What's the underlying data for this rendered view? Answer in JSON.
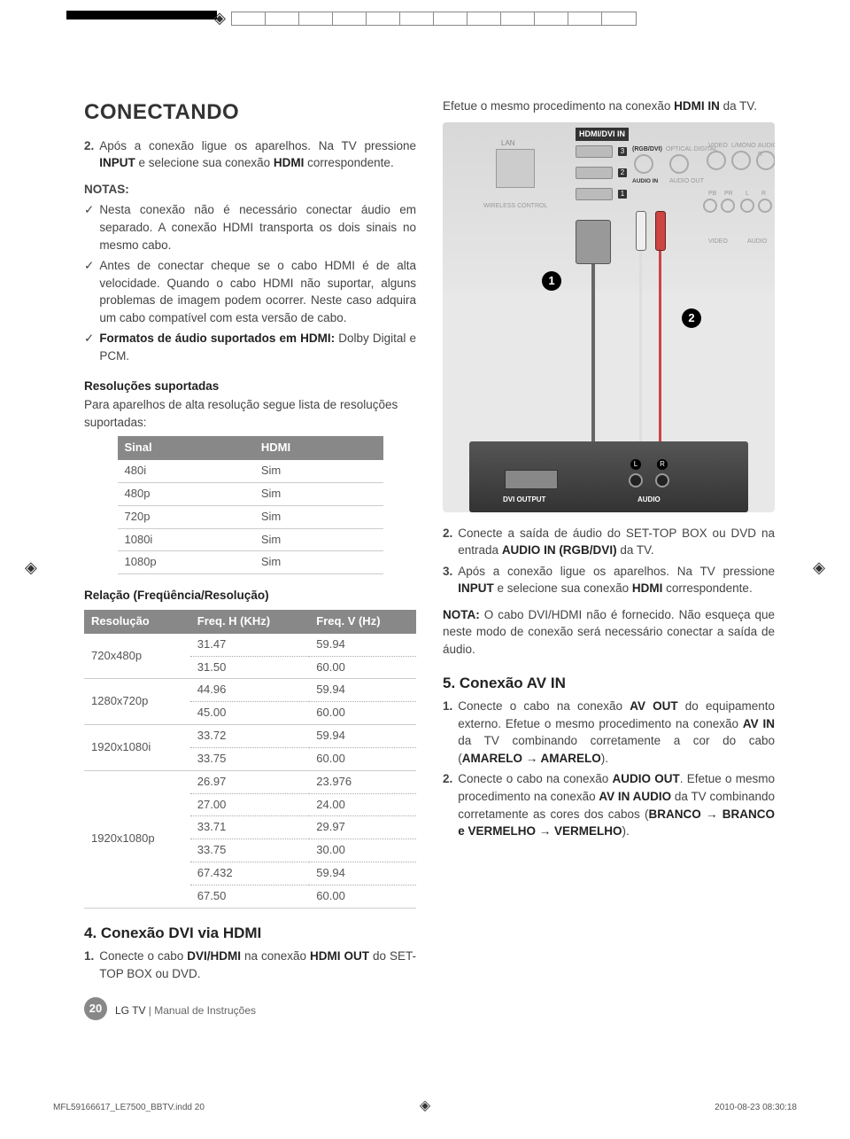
{
  "colors": {
    "text": "#444444",
    "heading": "#222222",
    "table_header_bg": "#888888",
    "table_header_fg": "#ffffff",
    "page_bg": "#ffffff",
    "footer_gray": "#888888",
    "swatches": [
      "#ffffff",
      "#ffffff",
      "#ffffff",
      "#ffffff",
      "#ffffff",
      "#ffffff",
      "#ffffff",
      "#ffffff",
      "#ffffff",
      "#ffffff",
      "#ffffff",
      "#ffffff"
    ]
  },
  "fonts": {
    "body_size_pt": 10,
    "h1_size_pt": 18,
    "h2_size_pt": 13
  },
  "page_title": "CONECTANDO",
  "left": {
    "step2_prefix": "2.",
    "step2_text": "Após a conexão ligue os aparelhos. Na TV pressione ",
    "step2_b1": "INPUT",
    "step2_mid": " e selecione sua conexão ",
    "step2_b2": "HDMI",
    "step2_end": " correspondente.",
    "notas_label": "NOTAS:",
    "check": "✓",
    "nota1": "Nesta conexão não é necessário conectar áudio em separado. A conexão HDMI transporta os dois sinais no mesmo cabo.",
    "nota2": "Antes de conectar cheque se o cabo HDMI é de alta velocidade. Quando o cabo HDMI não suportar, alguns problemas de imagem podem ocorrer. Neste caso adquira um cabo compatível com esta versão de cabo.",
    "nota3_b": "Formatos de áudio suportados em HDMI:",
    "nota3_rest": " Dolby Digital e PCM.",
    "res_head": "Resoluções suportadas",
    "res_intro": "Para aparelhos de alta resolução segue lista de resoluções suportadas:",
    "table1": {
      "headers": [
        "Sinal",
        "HDMI"
      ],
      "rows": [
        [
          "480i",
          "Sim"
        ],
        [
          "480p",
          "Sim"
        ],
        [
          "720p",
          "Sim"
        ],
        [
          "1080i",
          "Sim"
        ],
        [
          "1080p",
          "Sim"
        ]
      ]
    },
    "rel_head": "Relação (Freqüência/Resolução)",
    "table2": {
      "headers": [
        "Resolução",
        "Freq. H (KHz)",
        "Freq. V (Hz)"
      ],
      "groups": [
        {
          "res": "720x480p",
          "rows": [
            [
              "31.47",
              "59.94"
            ],
            [
              "31.50",
              "60.00"
            ]
          ]
        },
        {
          "res": "1280x720p",
          "rows": [
            [
              "44.96",
              "59.94"
            ],
            [
              "45.00",
              "60.00"
            ]
          ]
        },
        {
          "res": "1920x1080i",
          "rows": [
            [
              "33.72",
              "59.94"
            ],
            [
              "33.75",
              "60.00"
            ]
          ]
        },
        {
          "res": "1920x1080p",
          "rows": [
            [
              "26.97",
              "23.976"
            ],
            [
              "27.00",
              "24.00"
            ],
            [
              "33.71",
              "29.97"
            ],
            [
              "33.75",
              "30.00"
            ],
            [
              "67.432",
              "59.94"
            ],
            [
              "67.50",
              "60.00"
            ]
          ]
        }
      ]
    },
    "sec4_title": "4. Conexão DVI via HDMI",
    "sec4_1_n": "1.",
    "sec4_1_a": "Conecte o cabo ",
    "sec4_1_b1": "DVI/HDMI",
    "sec4_1_c": " na conexão ",
    "sec4_1_b2": "HDMI OUT",
    "sec4_1_d": " do SET-TOP BOX ou DVD."
  },
  "right": {
    "intro_a": "Efetue o mesmo procedimento na conexão ",
    "intro_b": "HDMI IN",
    "intro_c": " da TV.",
    "diagram": {
      "hdmi_label": "HDMI/DVI IN",
      "lan": "LAN",
      "wireless": "WIRELESS CONTROL",
      "rgbdvi": "(RGB/DVI)",
      "optical": "OPTICAL DIGITAL",
      "audio_in": "AUDIO IN",
      "audio_out": "AUDIO OUT",
      "video": "VIDEO",
      "lmono": "L/MONO",
      "audio_r": "AUDIO R",
      "pb": "PB",
      "pr": "PR",
      "l": "L",
      "r": "R",
      "audio_lbl": "AUDIO",
      "port_nums": [
        "3",
        "2",
        "1"
      ],
      "badge1": "1",
      "badge2": "2",
      "dvi_out": "DVI OUTPUT",
      "aud_l": "L",
      "aud_r": "R",
      "aud": "AUDIO"
    },
    "step2_n": "2.",
    "step2_a": "Conecte a saída de áudio do SET-TOP BOX ou DVD na entrada ",
    "step2_b": "AUDIO IN (RGB/DVI)",
    "step2_c": " da TV.",
    "step3_n": "3.",
    "step3_a": "Após a conexão ligue os aparelhos. Na TV pressione ",
    "step3_b1": "INPUT",
    "step3_c": " e selecione sua conexão ",
    "step3_b2": "HDMI",
    "step3_d": " correspondente.",
    "nota_b": "NOTA:",
    "nota_txt": " O cabo DVI/HDMI não é fornecido. Não esqueça que neste modo de conexão será necessário conectar a saída de áudio.",
    "sec5_title": "5. Conexão AV IN",
    "s5_1_n": "1.",
    "s5_1_a": "Conecte o cabo na conexão ",
    "s5_1_b1": "AV OUT",
    "s5_1_c": " do equipamento externo. Efetue o mesmo procedimento na conexão ",
    "s5_1_b2": "AV IN",
    "s5_1_d": " da TV combinando corretamente a cor do cabo (",
    "s5_1_b3": "AMARELO → AMARELO",
    "s5_1_e": ").",
    "s5_2_n": "2.",
    "s5_2_a": "Conecte o cabo na conexão ",
    "s5_2_b1": "AUDIO OUT",
    "s5_2_c": ". Efetue o mesmo procedimento na conexão ",
    "s5_2_b2": "AV IN AUDIO",
    "s5_2_d": " da TV combinando corretamente as cores dos cabos (",
    "s5_2_b3": "BRANCO → BRANCO e VERMELHO → VERMELHO",
    "s5_2_e": ")."
  },
  "footer": {
    "page_num": "20",
    "brand": "LG TV",
    "sep": " | ",
    "doc": "Manual de Instruções",
    "indd": "MFL59166617_LE7500_BBTV.indd   20",
    "timestamp": "2010-08-23   08:30:18"
  }
}
